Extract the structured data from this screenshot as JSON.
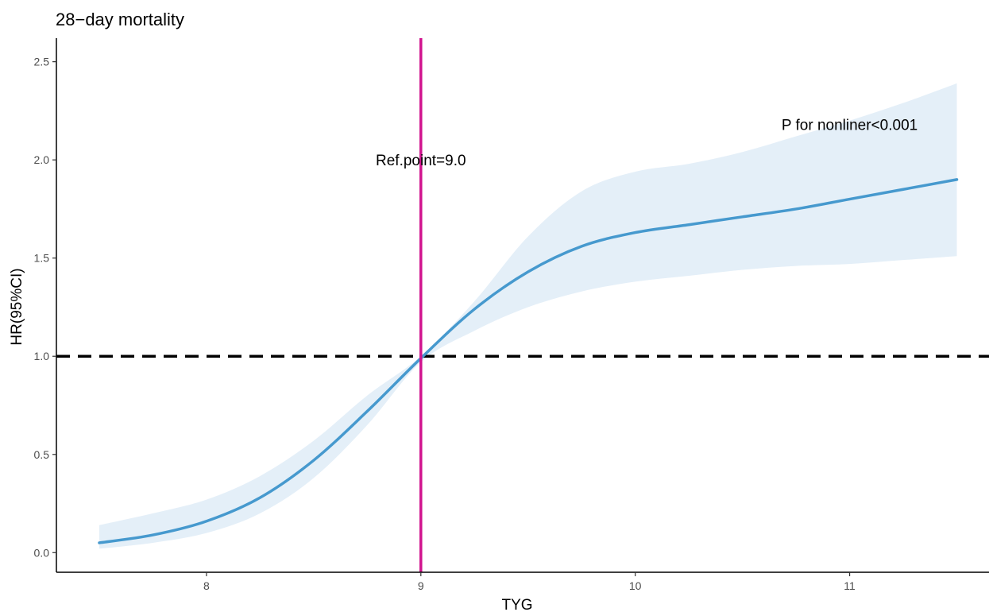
{
  "chart_data": {
    "type": "line",
    "title": "28−day mortality",
    "xlabel": "TYG",
    "ylabel": "HR(95%CI)",
    "xlim": [
      7.3,
      11.65
    ],
    "ylim": [
      -0.1,
      2.62
    ],
    "xticks": [
      8,
      9,
      10,
      11
    ],
    "yticks": [
      0.0,
      0.5,
      1.0,
      1.5,
      2.0,
      2.5
    ],
    "xtick_labels": [
      "8",
      "9",
      "10",
      "11"
    ],
    "ytick_labels": [
      "0.0",
      "0.5",
      "1.0",
      "1.5",
      "2.0",
      "2.5"
    ],
    "grid": false,
    "colors": {
      "line": "#4699CE",
      "band": "#E4EFF8",
      "ref_line": "#D1148F",
      "hline": "#000000",
      "axis": "#000000"
    },
    "reference_x": 9.0,
    "reference_y": 1.0,
    "annotations": [
      {
        "text": "Ref.point=9.0",
        "x": 9.0,
        "y": 2.0,
        "anchor": "middle"
      },
      {
        "text": "P for nonliner<0.001",
        "x": 11.0,
        "y": 2.18,
        "anchor": "middle"
      }
    ],
    "series": [
      {
        "x": [
          7.5,
          7.75,
          8.0,
          8.25,
          8.5,
          8.75,
          9.0,
          9.25,
          9.5,
          9.75,
          10.0,
          10.25,
          10.5,
          10.75,
          11.0,
          11.25,
          11.5
        ],
        "y": [
          0.05,
          0.09,
          0.16,
          0.28,
          0.47,
          0.72,
          0.99,
          1.24,
          1.43,
          1.56,
          1.63,
          1.67,
          1.71,
          1.75,
          1.8,
          1.85,
          1.9
        ],
        "lower": [
          0.02,
          0.05,
          0.1,
          0.2,
          0.38,
          0.65,
          0.97,
          1.13,
          1.25,
          1.33,
          1.38,
          1.41,
          1.44,
          1.46,
          1.47,
          1.49,
          1.51
        ],
        "upper": [
          0.14,
          0.2,
          0.27,
          0.39,
          0.57,
          0.8,
          1.0,
          1.28,
          1.61,
          1.84,
          1.94,
          1.98,
          2.04,
          2.12,
          2.2,
          2.29,
          2.39
        ]
      }
    ]
  }
}
